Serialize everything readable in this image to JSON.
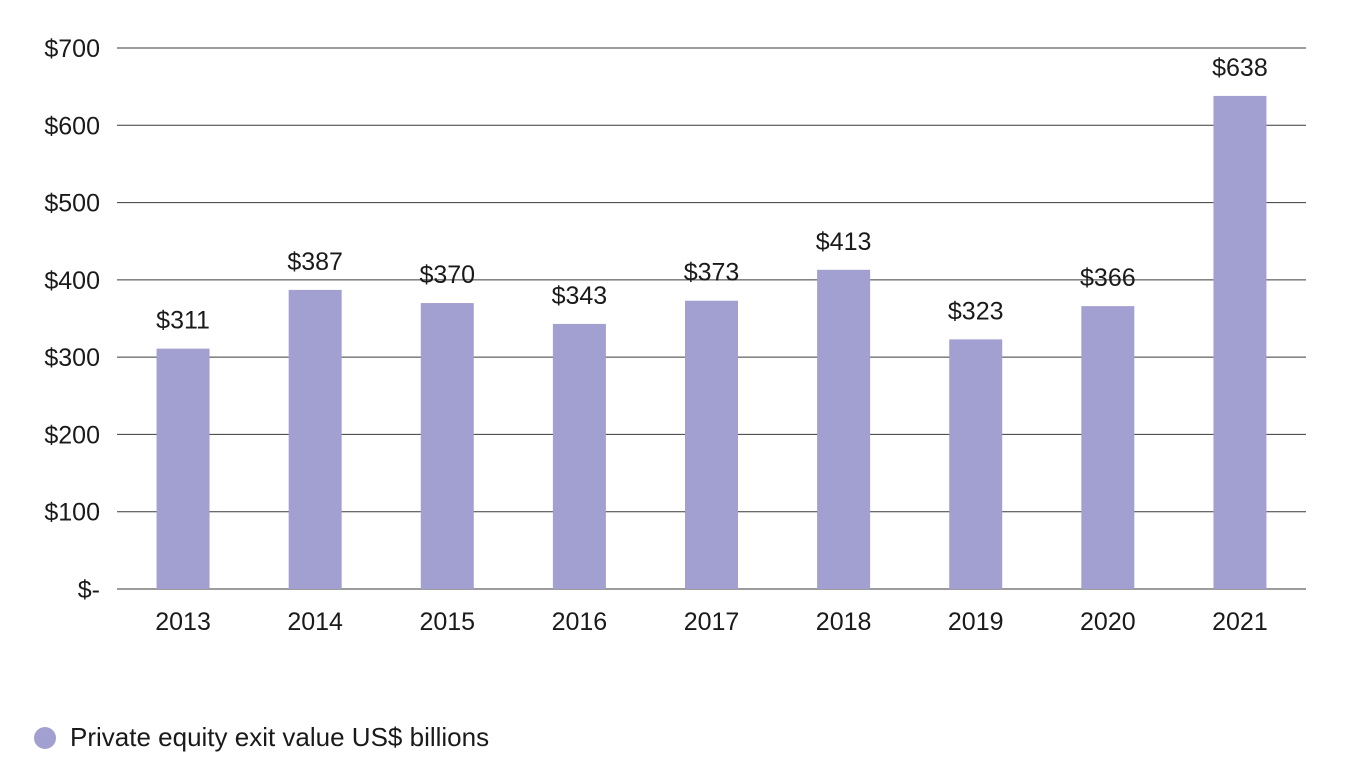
{
  "chart_data": {
    "type": "bar",
    "categories": [
      "2013",
      "2014",
      "2015",
      "2016",
      "2017",
      "2018",
      "2019",
      "2020",
      "2021"
    ],
    "series": [
      {
        "name": "Private equity exit value US$ billions",
        "values": [
          311,
          387,
          370,
          343,
          373,
          413,
          323,
          366,
          638
        ],
        "data_labels": [
          "$311",
          "$387",
          "$370",
          "$343",
          "$373",
          "$413",
          "$323",
          "$366",
          "$638"
        ]
      }
    ],
    "y_ticks": [
      0,
      100,
      200,
      300,
      400,
      500,
      600,
      700
    ],
    "y_tick_labels": [
      "$-",
      "$100",
      "$200",
      "$300",
      "$400",
      "$500",
      "$600",
      "$700"
    ],
    "ylim": [
      0,
      700
    ],
    "grid": "horizontal",
    "legend_position": "bottom-left",
    "bar_color": "#a2a0d0",
    "grid_color": "#3a3a3a"
  }
}
